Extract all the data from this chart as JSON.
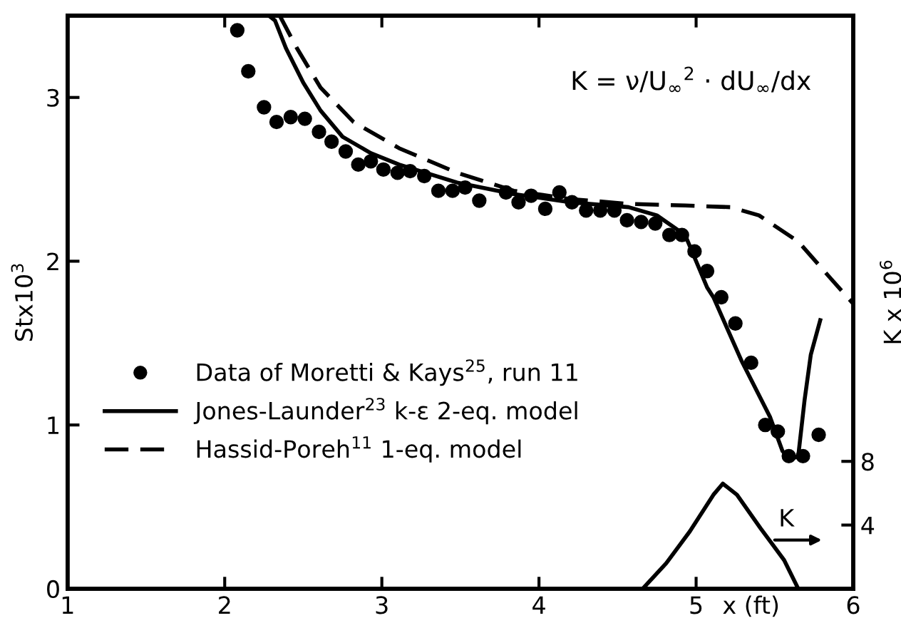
{
  "chart_data": {
    "type": "line",
    "xlabel": "x (ft)",
    "ylabel": "Stx10$^{3}$",
    "y2label": "K x 10$^{6}$",
    "xlim": [
      1,
      6
    ],
    "xticks": [
      1,
      2,
      3,
      4,
      5,
      6
    ],
    "ylim": [
      0,
      3.5
    ],
    "yticks": [
      0,
      1,
      2,
      3
    ],
    "y2lim": [
      0,
      36
    ],
    "y2ticks": [
      4,
      8
    ],
    "grid": false,
    "legend": "left",
    "annotations": [
      "K = ν/U$_{∞}$$^{2}$ · dU$_{∞}$/dx"
    ],
    "series": [
      {
        "name": "Data of Moretti & Kays$^{25}$, run 11",
        "type": "scatter",
        "marker": "circle",
        "color": "#000000",
        "x": [
          2.08,
          2.15,
          2.25,
          2.33,
          2.42,
          2.51,
          2.6,
          2.68,
          2.77,
          2.85,
          2.93,
          3.01,
          3.1,
          3.18,
          3.27,
          3.36,
          3.45,
          3.53,
          3.62,
          3.79,
          3.87,
          3.95,
          4.04,
          4.13,
          4.21,
          4.3,
          4.39,
          4.48,
          4.56,
          4.65,
          4.74,
          4.83,
          4.91,
          4.99,
          5.07,
          5.16,
          5.25,
          5.35,
          5.44,
          5.52,
          5.59,
          5.68,
          5.78
        ],
        "values": [
          3.41,
          3.16,
          2.94,
          2.85,
          2.88,
          2.87,
          2.79,
          2.73,
          2.67,
          2.59,
          2.61,
          2.56,
          2.54,
          2.55,
          2.52,
          2.43,
          2.43,
          2.45,
          2.37,
          2.42,
          2.36,
          2.4,
          2.32,
          2.42,
          2.36,
          2.31,
          2.31,
          2.31,
          2.25,
          2.24,
          2.23,
          2.16,
          2.16,
          2.06,
          1.94,
          1.78,
          1.62,
          1.38,
          1.0,
          0.96,
          0.81,
          0.81,
          0.94
        ]
      },
      {
        "name": "Jones-Launder$^{23}$ k-ε 2-eq. model",
        "line_style": "solid",
        "color": "#000000",
        "x": [
          2.28,
          2.32,
          2.39,
          2.5,
          2.61,
          2.75,
          2.93,
          3.11,
          3.48,
          3.84,
          4.2,
          4.57,
          4.75,
          4.93,
          5.07,
          5.11,
          5.29,
          5.47,
          5.55,
          5.6,
          5.65,
          5.69,
          5.73,
          5.79
        ],
        "values": [
          3.5,
          3.47,
          3.3,
          3.09,
          2.92,
          2.76,
          2.66,
          2.59,
          2.48,
          2.41,
          2.36,
          2.33,
          2.28,
          2.16,
          1.84,
          1.78,
          1.39,
          1.05,
          0.84,
          0.79,
          0.81,
          1.15,
          1.43,
          1.64
        ]
      },
      {
        "name": "Hassid-Poreh$^{11}$ 1-eq. model",
        "line_style": "dashed",
        "color": "#000000",
        "x": [
          2.35,
          2.46,
          2.61,
          2.82,
          3.11,
          3.48,
          3.84,
          4.2,
          4.57,
          4.93,
          5.22,
          5.4,
          5.65,
          5.87,
          6.0
        ],
        "values": [
          3.5,
          3.3,
          3.06,
          2.85,
          2.69,
          2.54,
          2.43,
          2.38,
          2.35,
          2.34,
          2.33,
          2.28,
          2.12,
          1.88,
          1.74
        ]
      },
      {
        "name": "K",
        "axis": "y2",
        "line_style": "solid",
        "color": "#000000",
        "x": [
          4.66,
          4.81,
          4.96,
          5.11,
          5.17,
          5.26,
          5.41,
          5.56,
          5.65
        ],
        "values": [
          0,
          1.6,
          3.6,
          5.9,
          6.6,
          5.9,
          3.8,
          1.8,
          0
        ]
      }
    ]
  }
}
